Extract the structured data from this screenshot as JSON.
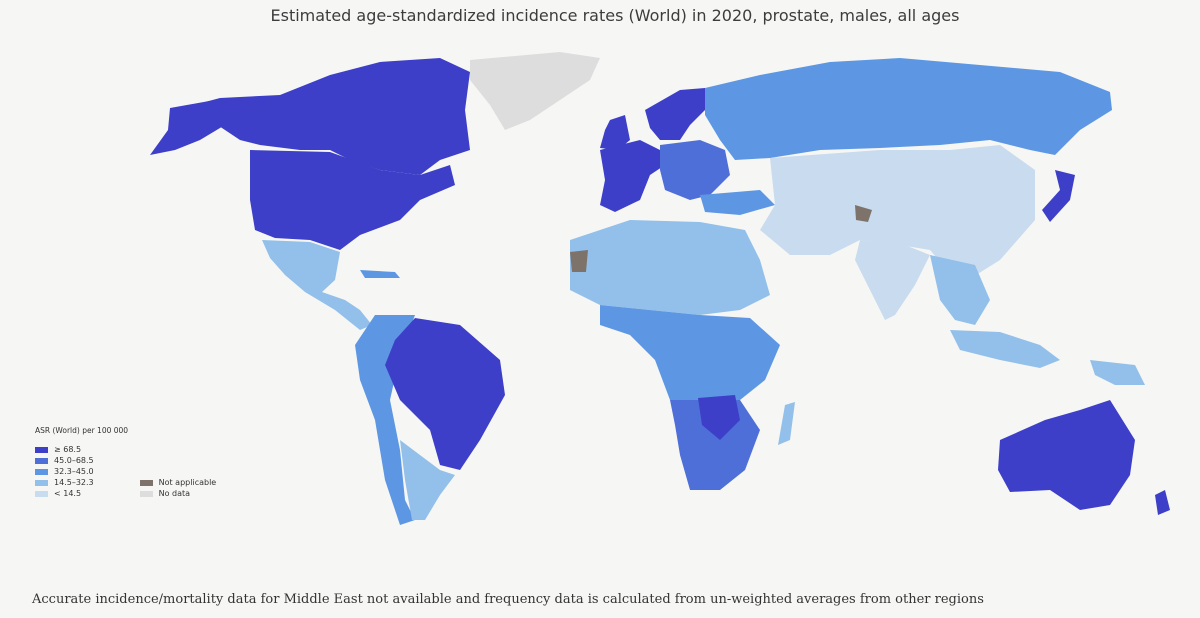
{
  "title": "Estimated age-standardized incidence rates (World) in 2020, prostate, males, all ages",
  "legend": {
    "title": "ASR (World) per 100 000",
    "classes": [
      {
        "label": "≥ 68.5",
        "color": "#3d3fc9"
      },
      {
        "label": "45.0–68.5",
        "color": "#4f6fd8"
      },
      {
        "label": "32.3–45.0",
        "color": "#5d97e3"
      },
      {
        "label": "14.5–32.3",
        "color": "#93c0ea"
      },
      {
        "label": "< 14.5",
        "color": "#c9dbee"
      }
    ],
    "extra": [
      {
        "label": "Not applicable",
        "color": "#7d736b"
      },
      {
        "label": "No data",
        "color": "#dddddd"
      }
    ]
  },
  "footnote": "Accurate incidence/mortality data for Middle East not available and frequency data is calculated from un-weighted averages from other regions"
}
